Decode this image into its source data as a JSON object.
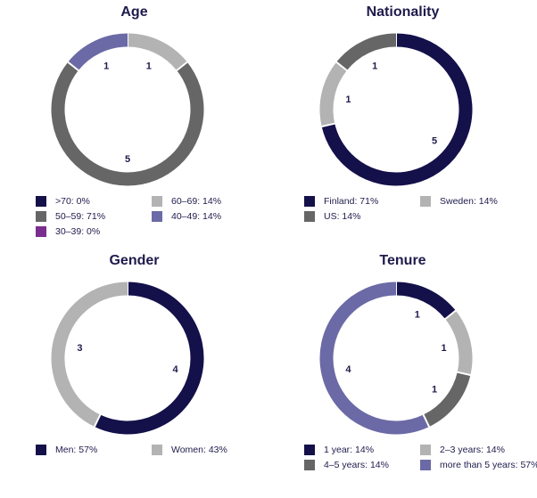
{
  "chart_data": [
    {
      "type": "pie",
      "title": "Age",
      "slices": [
        {
          "label": "60–69",
          "count": 1,
          "legend": "60–69: 14%",
          "color": "#b3b3b3"
        },
        {
          "label": "50–59",
          "count": 5,
          "legend": "50–59: 71%",
          "color": "#666666"
        },
        {
          "label": "40–49",
          "count": 1,
          "legend": "40–49: 14%",
          "color": "#6b6aa6"
        },
        {
          "label": ">70",
          "count": 0,
          "legend": ">70: 0%",
          "color": "#14104a"
        },
        {
          "label": "30–39",
          "count": 0,
          "legend": "30–39: 0%",
          "color": "#7a2e8e"
        }
      ],
      "legend_order": [
        3,
        0,
        1,
        2,
        4
      ]
    },
    {
      "type": "pie",
      "title": "Nationality",
      "slices": [
        {
          "label": "Finland",
          "count": 5,
          "legend": "Finland: 71%",
          "color": "#14104a"
        },
        {
          "label": "Sweden",
          "count": 1,
          "legend": "Sweden: 14%",
          "color": "#b3b3b3"
        },
        {
          "label": "US",
          "count": 1,
          "legend": "US: 14%",
          "color": "#666666"
        }
      ],
      "legend_order": [
        0,
        1,
        2
      ]
    },
    {
      "type": "pie",
      "title": "Gender",
      "slices": [
        {
          "label": "Men",
          "count": 4,
          "legend": "Men: 57%",
          "color": "#14104a"
        },
        {
          "label": "Women",
          "count": 3,
          "legend": "Women: 43%",
          "color": "#b3b3b3"
        }
      ],
      "legend_order": [
        0,
        1
      ]
    },
    {
      "type": "pie",
      "title": "Tenure",
      "slices": [
        {
          "label": "1 year",
          "count": 1,
          "legend": "1 year: 14%",
          "color": "#14104a"
        },
        {
          "label": "2–3 years",
          "count": 1,
          "legend": "2–3 years: 14%",
          "color": "#b3b3b3"
        },
        {
          "label": "4–5 years",
          "count": 1,
          "legend": "4–5 years: 14%",
          "color": "#666666"
        },
        {
          "label": "more than 5 years",
          "count": 4,
          "legend": "more than 5 years: 57%",
          "color": "#6b6aa6"
        }
      ],
      "legend_order": [
        0,
        1,
        2,
        3
      ]
    }
  ]
}
